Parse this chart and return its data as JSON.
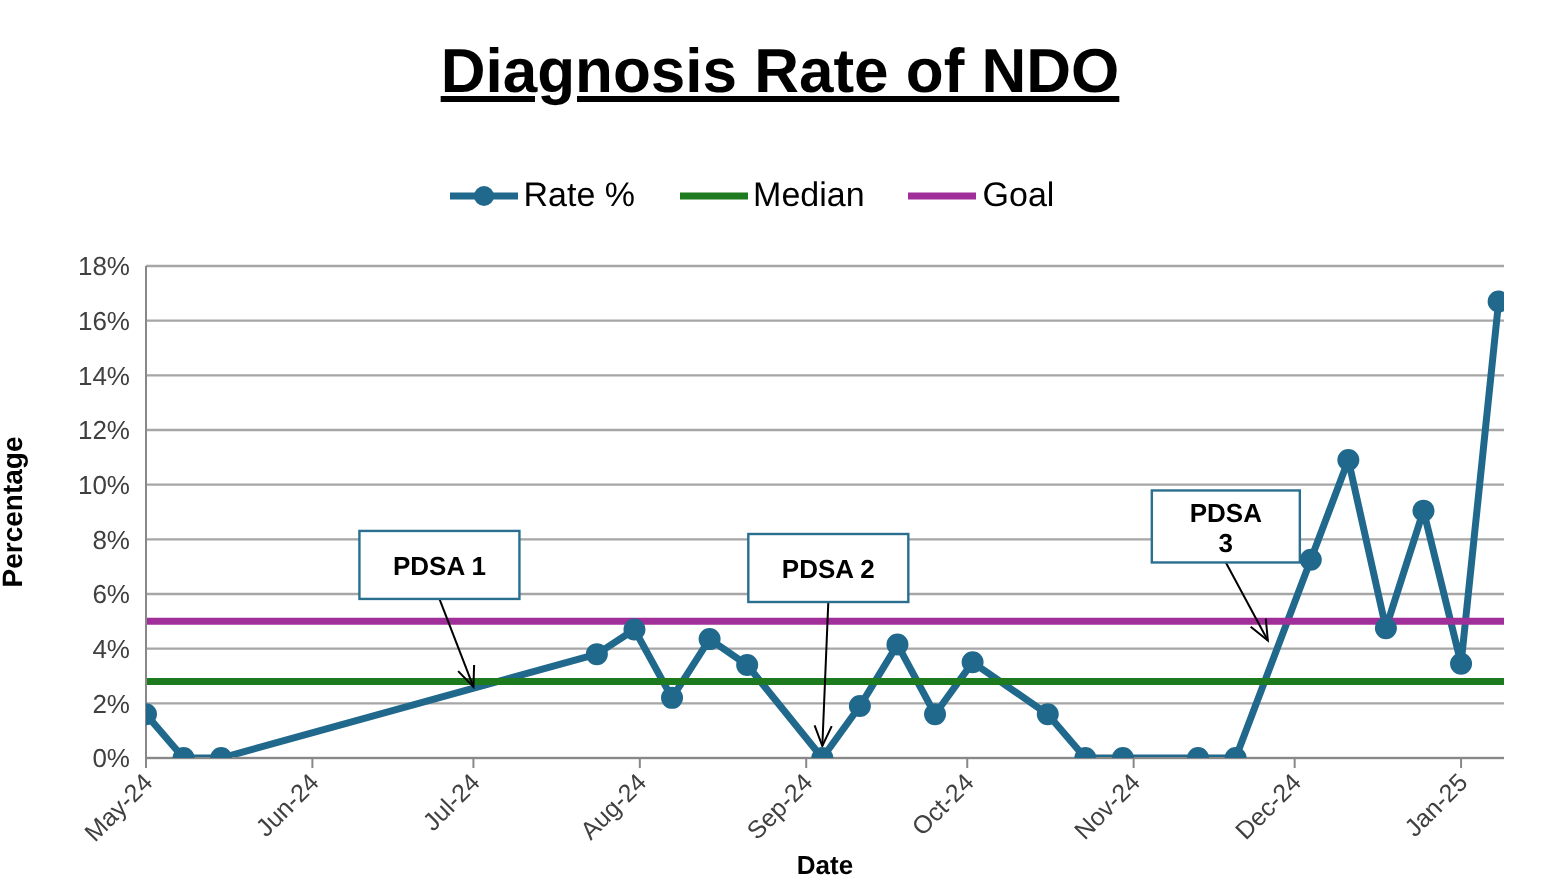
{
  "chart_data": {
    "type": "line",
    "title": "Diagnosis Rate of NDO",
    "xlabel": "Date",
    "ylabel": "Percentage",
    "x": [
      "2024-05-01",
      "2024-05-08",
      "2024-05-15",
      "2024-07-24",
      "2024-07-31",
      "2024-08-07",
      "2024-08-14",
      "2024-08-21",
      "2024-09-04",
      "2024-09-11",
      "2024-09-18",
      "2024-09-25",
      "2024-10-02",
      "2024-10-16",
      "2024-10-23",
      "2024-10-30",
      "2024-11-13",
      "2024-11-20",
      "2024-12-04",
      "2024-12-11",
      "2024-12-18",
      "2024-12-25",
      "2025-01-01",
      "2025-01-08"
    ],
    "series": [
      {
        "name": "Rate %",
        "color": "#21698c",
        "marker": "circle",
        "values": [
          1.6,
          0,
          0,
          3.8,
          4.7,
          2.2,
          4.35,
          3.4,
          0,
          1.9,
          4.15,
          1.6,
          3.5,
          1.6,
          0,
          0,
          0,
          0,
          7.25,
          10.9,
          4.75,
          9.05,
          3.45,
          16.7
        ]
      },
      {
        "name": "Median",
        "color": "#1e7a1e",
        "type": "line",
        "marker": "none",
        "x": [
          "2024-05-01",
          "2025-01-09"
        ],
        "values": [
          2.8,
          2.8
        ]
      },
      {
        "name": "Goal",
        "color": "#a02f9a",
        "type": "line",
        "marker": "none",
        "x": [
          "2024-05-01",
          "2025-01-09"
        ],
        "values": [
          5,
          5
        ]
      }
    ],
    "xlim": [
      "2024-05-01",
      "2025-01-09"
    ],
    "xticks": [
      {
        "value": "2024-05-01",
        "label": "May-24"
      },
      {
        "value": "2024-06-01",
        "label": "Jun-24"
      },
      {
        "value": "2024-07-01",
        "label": "Jul-24"
      },
      {
        "value": "2024-08-01",
        "label": "Aug-24"
      },
      {
        "value": "2024-09-01",
        "label": "Sep-24"
      },
      {
        "value": "2024-10-01",
        "label": "Oct-24"
      },
      {
        "value": "2024-11-01",
        "label": "Nov-24"
      },
      {
        "value": "2024-12-01",
        "label": "Dec-24"
      },
      {
        "value": "2025-01-01",
        "label": "Jan-25"
      }
    ],
    "ylim": [
      0,
      18
    ],
    "yticks": [
      {
        "value": 0,
        "label": "0%"
      },
      {
        "value": 2,
        "label": "2%"
      },
      {
        "value": 4,
        "label": "4%"
      },
      {
        "value": 6,
        "label": "6%"
      },
      {
        "value": 8,
        "label": "8%"
      },
      {
        "value": 10,
        "label": "10%"
      },
      {
        "value": 12,
        "label": "12%"
      },
      {
        "value": 14,
        "label": "14%"
      },
      {
        "value": 16,
        "label": "16%"
      },
      {
        "value": 18,
        "label": "18%"
      }
    ],
    "grid": "y",
    "legend": "top",
    "annotations": [
      {
        "text": "PDSA 1",
        "x": "2024-07-01",
        "y": 2.6
      },
      {
        "text": "PDSA 2",
        "x": "2024-09-04",
        "y": 0
      },
      {
        "text": "PDSA 3",
        "x": "2024-11-26",
        "y": 4.3
      }
    ]
  }
}
